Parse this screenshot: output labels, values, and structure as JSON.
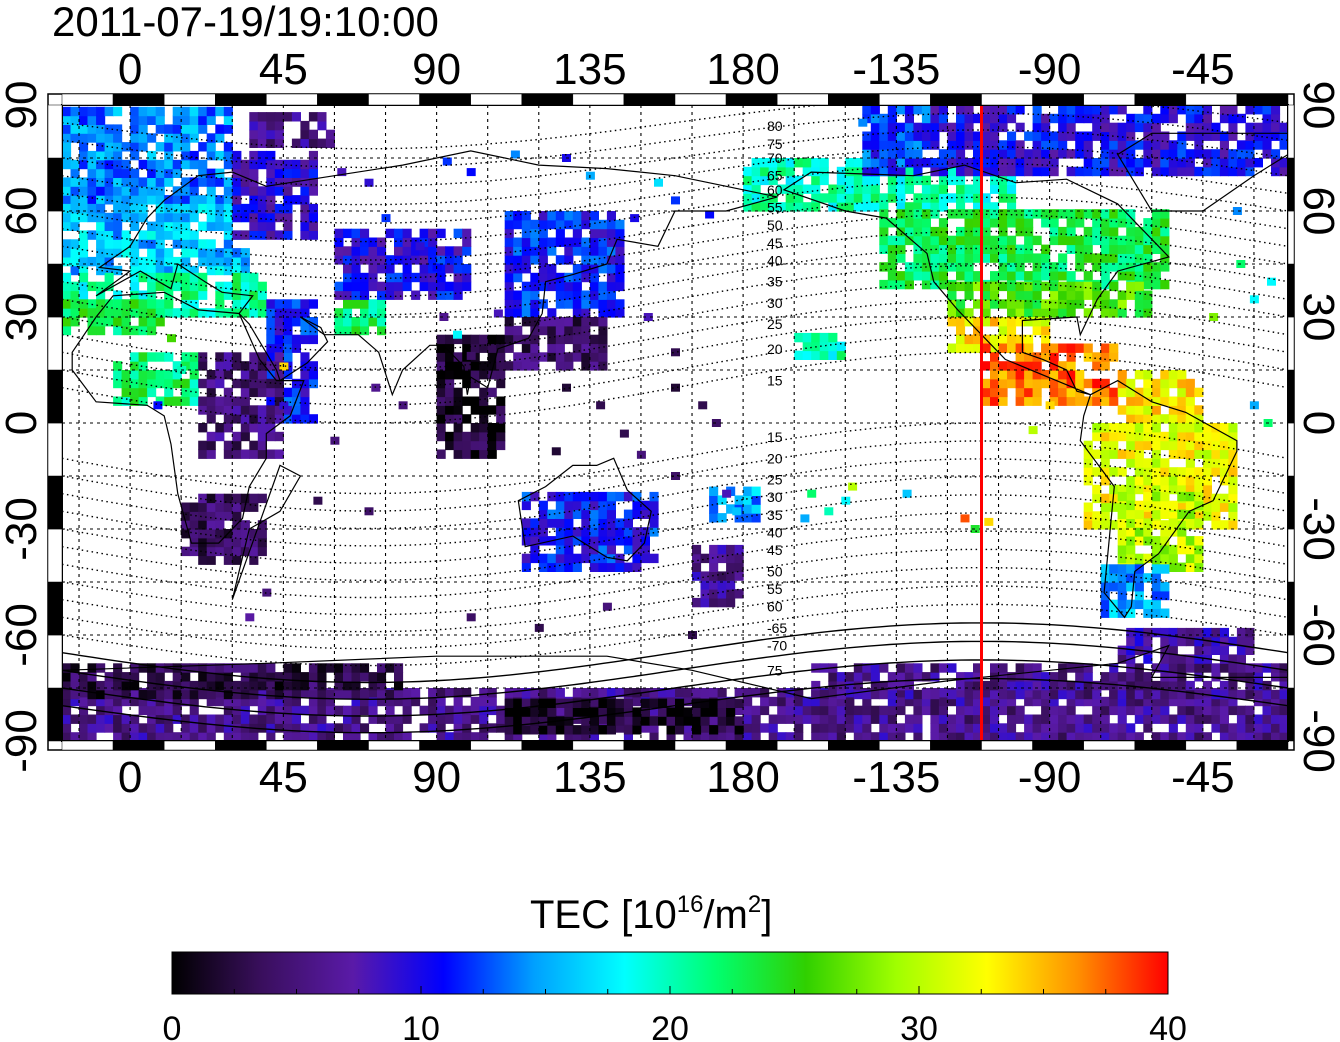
{
  "timestamp": "2011-07-19/19:10:00",
  "colorbar": {
    "title_main": "TEC  [10",
    "title_sup1": "16",
    "title_mid": "/m",
    "title_sup2": "2",
    "title_end": "]",
    "ticks": [
      "0",
      "10",
      "20",
      "30",
      "40"
    ],
    "stops": [
      "#000000",
      "#3a0f5e",
      "#5a1aa8",
      "#0000ff",
      "#00a0ff",
      "#00ffff",
      "#00ff70",
      "#30d000",
      "#a0ff00",
      "#ffff00",
      "#ff9000",
      "#ff0000"
    ]
  },
  "chart_data": {
    "type": "heatmap",
    "title": "2011-07-19/19:10:00",
    "colorbar_range": [
      0,
      40
    ],
    "x_ticks": [
      "0",
      "45",
      "90",
      "135",
      "180",
      "-135",
      "-90",
      "-45"
    ],
    "x_tick_values": [
      0,
      45,
      90,
      135,
      180,
      225,
      270,
      315
    ],
    "y_ticks": [
      "90",
      "60",
      "30",
      "0",
      "-30",
      "-60",
      "-90"
    ],
    "y_tick_values": [
      90,
      60,
      30,
      0,
      -30,
      -60,
      -90
    ],
    "xlim": [
      -20,
      340
    ],
    "ylim": [
      -90,
      90
    ],
    "meridian_marker_lon": -110,
    "contour_labels": [
      {
        "text": "80",
        "lon": 187,
        "lat": 84
      },
      {
        "text": "75",
        "lon": 187,
        "lat": 79
      },
      {
        "text": "70",
        "lon": 187,
        "lat": 75
      },
      {
        "text": "65",
        "lon": 187,
        "lat": 70
      },
      {
        "text": "60",
        "lon": 187,
        "lat": 66
      },
      {
        "text": "55",
        "lon": 187,
        "lat": 61
      },
      {
        "text": "50",
        "lon": 187,
        "lat": 56
      },
      {
        "text": "45",
        "lon": 187,
        "lat": 51
      },
      {
        "text": "40",
        "lon": 187,
        "lat": 46
      },
      {
        "text": "35",
        "lon": 187,
        "lat": 40
      },
      {
        "text": "30",
        "lon": 187,
        "lat": 34
      },
      {
        "text": "25",
        "lon": 187,
        "lat": 28
      },
      {
        "text": "20",
        "lon": 187,
        "lat": 21
      },
      {
        "text": "15",
        "lon": 187,
        "lat": 12
      },
      {
        "text": "15",
        "lon": 187,
        "lat": -4
      },
      {
        "text": "20",
        "lon": 187,
        "lat": -10
      },
      {
        "text": "25",
        "lon": 187,
        "lat": -16
      },
      {
        "text": "30",
        "lon": 187,
        "lat": -21
      },
      {
        "text": "35",
        "lon": 187,
        "lat": -26
      },
      {
        "text": "40",
        "lon": 187,
        "lat": -31
      },
      {
        "text": "45",
        "lon": 187,
        "lat": -36
      },
      {
        "text": "50",
        "lon": 187,
        "lat": -42
      },
      {
        "text": "55",
        "lon": 187,
        "lat": -47
      },
      {
        "text": "60",
        "lon": 187,
        "lat": -52
      },
      {
        "text": "-65",
        "lon": 187,
        "lat": -58
      },
      {
        "text": "-70",
        "lon": 187,
        "lat": -63
      },
      {
        "text": "75",
        "lon": 187,
        "lat": -70
      }
    ],
    "tec_regions": [
      {
        "lon": [
          -20,
          30
        ],
        "lat": [
          62,
          88
        ],
        "tec": 14
      },
      {
        "lon": [
          -20,
          35
        ],
        "lat": [
          42,
          62
        ],
        "tec": 16
      },
      {
        "lon": [
          -20,
          5
        ],
        "lat": [
          30,
          42
        ],
        "tec": 20
      },
      {
        "lon": [
          5,
          40
        ],
        "lat": [
          30,
          42
        ],
        "tec": 21
      },
      {
        "lon": [
          -20,
          10
        ],
        "lat": [
          25,
          35
        ],
        "tec": 23
      },
      {
        "lon": [
          30,
          55
        ],
        "lat": [
          52,
          75
        ],
        "tec": 9
      },
      {
        "lon": [
          35,
          60
        ],
        "lat": [
          78,
          88
        ],
        "tec": 6
      },
      {
        "lon": [
          -5,
          20
        ],
        "lat": [
          5,
          20
        ],
        "tec": 22
      },
      {
        "lon": [
          40,
          55
        ],
        "lat": [
          0,
          35
        ],
        "tec": 11
      },
      {
        "lon": [
          20,
          45
        ],
        "lat": [
          -10,
          20
        ],
        "tec": 5
      },
      {
        "lon": [
          15,
          40
        ],
        "lat": [
          -40,
          -20
        ],
        "tec": 4
      },
      {
        "lon": [
          60,
          75
        ],
        "lat": [
          25,
          35
        ],
        "tec": 22
      },
      {
        "lon": [
          60,
          100
        ],
        "lat": [
          35,
          55
        ],
        "tec": 10
      },
      {
        "lon": [
          90,
          110
        ],
        "lat": [
          -10,
          25
        ],
        "tec": 2
      },
      {
        "lon": [
          110,
          145
        ],
        "lat": [
          30,
          58
        ],
        "tec": 11
      },
      {
        "lon": [
          110,
          140
        ],
        "lat": [
          15,
          30
        ],
        "tec": 4
      },
      {
        "lon": [
          115,
          155
        ],
        "lat": [
          -42,
          -20
        ],
        "tec": 11
      },
      {
        "lon": [
          165,
          180
        ],
        "lat": [
          -52,
          -35
        ],
        "tec": 6
      },
      {
        "lon": [
          170,
          185
        ],
        "lat": [
          -28,
          -18
        ],
        "tec": 15
      },
      {
        "lon": [
          195,
          210
        ],
        "lat": [
          18,
          25
        ],
        "tec": 20
      },
      {
        "lon": [
          180,
          260
        ],
        "lat": [
          60,
          75
        ],
        "tec": 20
      },
      {
        "lon": [
          215,
          235
        ],
        "lat": [
          70,
          88
        ],
        "tec": 12
      },
      {
        "lon": [
          235,
          340
        ],
        "lat": [
          70,
          88
        ],
        "tec": 10
      },
      {
        "lon": [
          220,
          305
        ],
        "lat": [
          38,
          60
        ],
        "tec": 23
      },
      {
        "lon": [
          240,
          300
        ],
        "lat": [
          30,
          40
        ],
        "tec": 26
      },
      {
        "lon": [
          240,
          270
        ],
        "lat": [
          20,
          30
        ],
        "tec": 33
      },
      {
        "lon": [
          250,
          290
        ],
        "lat": [
          5,
          22
        ],
        "tec": 37
      },
      {
        "lon": [
          290,
          315
        ],
        "lat": [
          0,
          15
        ],
        "tec": 33
      },
      {
        "lon": [
          280,
          325
        ],
        "lat": [
          -30,
          0
        ],
        "tec": 32
      },
      {
        "lon": [
          290,
          315
        ],
        "lat": [
          -42,
          -20
        ],
        "tec": 30
      },
      {
        "lon": [
          285,
          305
        ],
        "lat": [
          -55,
          -42
        ],
        "tec": 15
      },
      {
        "lon": [
          -20,
          340
        ],
        "lat": [
          -90,
          -75
        ],
        "tec": 6
      },
      {
        "lon": [
          110,
          180
        ],
        "lat": [
          -88,
          -78
        ],
        "tec": 1
      },
      {
        "lon": [
          -20,
          80
        ],
        "lat": [
          -78,
          -70
        ],
        "tec": 3
      },
      {
        "lon": [
          200,
          340
        ],
        "lat": [
          -78,
          -70
        ],
        "tec": 6
      },
      {
        "lon": [
          290,
          330
        ],
        "lat": [
          -68,
          -60
        ],
        "tec": 7
      }
    ],
    "tec_points": [
      {
        "lon": 62,
        "lat": 71,
        "tec": 8
      },
      {
        "lon": 70,
        "lat": 68,
        "tec": 9
      },
      {
        "lon": 93,
        "lat": 74,
        "tec": 12
      },
      {
        "lon": 100,
        "lat": 71,
        "tec": 11
      },
      {
        "lon": 113,
        "lat": 76,
        "tec": 14
      },
      {
        "lon": 128,
        "lat": 75,
        "tec": 10
      },
      {
        "lon": 135,
        "lat": 70,
        "tec": 15
      },
      {
        "lon": 155,
        "lat": 68,
        "tec": 17
      },
      {
        "lon": 160,
        "lat": 63,
        "tec": 12
      },
      {
        "lon": 170,
        "lat": 59,
        "tec": 11
      },
      {
        "lon": 148,
        "lat": 58,
        "tec": 10
      },
      {
        "lon": 75,
        "lat": 58,
        "tec": 12
      },
      {
        "lon": 85,
        "lat": 50,
        "tec": 9
      },
      {
        "lon": 90,
        "lat": 44,
        "tec": 11
      },
      {
        "lon": 92,
        "lat": 30,
        "tec": 6
      },
      {
        "lon": 96,
        "lat": 25,
        "tec": 18
      },
      {
        "lon": 100,
        "lat": 19,
        "tec": 4
      },
      {
        "lon": 108,
        "lat": 31,
        "tec": 8
      },
      {
        "lon": 152,
        "lat": 30,
        "tec": 8
      },
      {
        "lon": 160,
        "lat": 20,
        "tec": 3
      },
      {
        "lon": 160,
        "lat": 10,
        "tec": 2
      },
      {
        "lon": 168,
        "lat": 5,
        "tec": 3
      },
      {
        "lon": 172,
        "lat": 0,
        "tec": 4
      },
      {
        "lon": 145,
        "lat": -3,
        "tec": 3
      },
      {
        "lon": 150,
        "lat": -9,
        "tec": 5
      },
      {
        "lon": 138,
        "lat": 5,
        "tec": 3
      },
      {
        "lon": 128,
        "lat": 10,
        "tec": 2
      },
      {
        "lon": 125,
        "lat": -8,
        "tec": 2
      },
      {
        "lon": 160,
        "lat": -15,
        "tec": 4
      },
      {
        "lon": 175,
        "lat": -20,
        "tec": 8
      },
      {
        "lon": 178,
        "lat": -25,
        "tec": 16
      },
      {
        "lon": 165,
        "lat": -60,
        "tec": 3
      },
      {
        "lon": 140,
        "lat": -52,
        "tec": 5
      },
      {
        "lon": 70,
        "lat": -25,
        "tec": 4
      },
      {
        "lon": 80,
        "lat": 5,
        "tec": 5
      },
      {
        "lon": 72,
        "lat": 10,
        "tec": 6
      },
      {
        "lon": 60,
        "lat": -5,
        "tec": 5
      },
      {
        "lon": 55,
        "lat": -22,
        "tec": 3
      },
      {
        "lon": 35,
        "lat": -55,
        "tec": 7
      },
      {
        "lon": 40,
        "lat": -48,
        "tec": 5
      },
      {
        "lon": 100,
        "lat": -55,
        "tec": 4
      },
      {
        "lon": 120,
        "lat": -58,
        "tec": 3
      },
      {
        "lon": 200,
        "lat": -20,
        "tec": 22
      },
      {
        "lon": 205,
        "lat": -25,
        "tec": 20
      },
      {
        "lon": 210,
        "lat": -22,
        "tec": 18
      },
      {
        "lon": 212,
        "lat": -18,
        "tec": 30
      },
      {
        "lon": 198,
        "lat": -27,
        "tec": 15
      },
      {
        "lon": 245,
        "lat": -27,
        "tec": 38
      },
      {
        "lon": 248,
        "lat": -30,
        "tec": 24
      },
      {
        "lon": 252,
        "lat": -28,
        "tec": 34
      },
      {
        "lon": 228,
        "lat": -20,
        "tec": 16
      },
      {
        "lon": 45,
        "lat": 16,
        "tec": 34
      },
      {
        "lon": 12,
        "lat": 24,
        "tec": 26
      },
      {
        "lon": 15,
        "lat": 15,
        "tec": 20
      },
      {
        "lon": 45,
        "lat": 5,
        "tec": 9
      },
      {
        "lon": 8,
        "lat": 5,
        "tec": 11
      },
      {
        "lon": 330,
        "lat": 5,
        "tec": 15
      },
      {
        "lon": 334,
        "lat": 0,
        "tec": 22
      },
      {
        "lon": 265,
        "lat": -2,
        "tec": 30
      },
      {
        "lon": 270,
        "lat": 5,
        "tec": 34
      },
      {
        "lon": 326,
        "lat": 45,
        "tec": 22
      },
      {
        "lon": 330,
        "lat": 35,
        "tec": 18
      },
      {
        "lon": 318,
        "lat": 30,
        "tec": 28
      },
      {
        "lon": 325,
        "lat": 60,
        "tec": 14
      },
      {
        "lon": 335,
        "lat": 40,
        "tec": 18
      },
      {
        "lon": 215,
        "lat": 85,
        "tec": 14
      }
    ]
  }
}
